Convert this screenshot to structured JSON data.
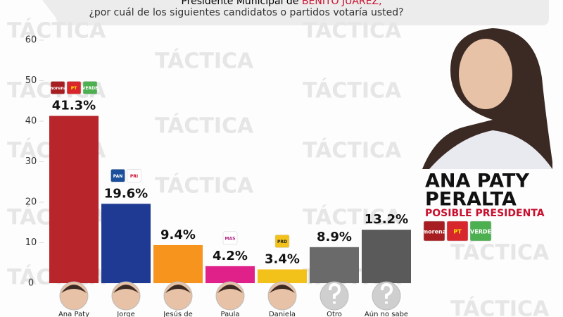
{
  "header": {
    "line1_prefix": "Presidente Municipal de",
    "line1_highlight": "BENITO JUÁREZ,",
    "line2": "¿por cuál de los siguientes candidatos o partidos votaría usted?"
  },
  "watermark": "TÁCTICA",
  "chart_data": {
    "type": "bar",
    "categories": [
      "Ana Paty",
      "Jorge",
      "Jesús de",
      "Paula",
      "Daniela",
      "Otro",
      "Aún no sabe"
    ],
    "values": [
      41.3,
      19.6,
      9.4,
      4.2,
      3.4,
      8.9,
      13.2
    ],
    "value_labels": [
      "41.3%",
      "19.6%",
      "9.4%",
      "4.2%",
      "3.4%",
      "8.9%",
      "13.2%"
    ],
    "colors": [
      "#b8252a",
      "#1f3a93",
      "#f7941d",
      "#e0218a",
      "#f2c21b",
      "#6a6a6a",
      "#5a5a5a"
    ],
    "party_logos": [
      [
        "morena",
        "PT",
        "VERDE"
      ],
      [
        "PAN",
        "PRI"
      ],
      [],
      [
        "MAS"
      ],
      [
        "PRD"
      ],
      [],
      []
    ],
    "ylim": [
      0,
      60
    ],
    "yticks": [
      0,
      10,
      20,
      30,
      40,
      50,
      60
    ]
  },
  "candidate": {
    "name_line1": "ANA PATY",
    "name_line2": "PERALTA",
    "subtitle": "POSIBLE PRESIDENTA",
    "logos": [
      "morena",
      "PT",
      "VERDE"
    ]
  }
}
